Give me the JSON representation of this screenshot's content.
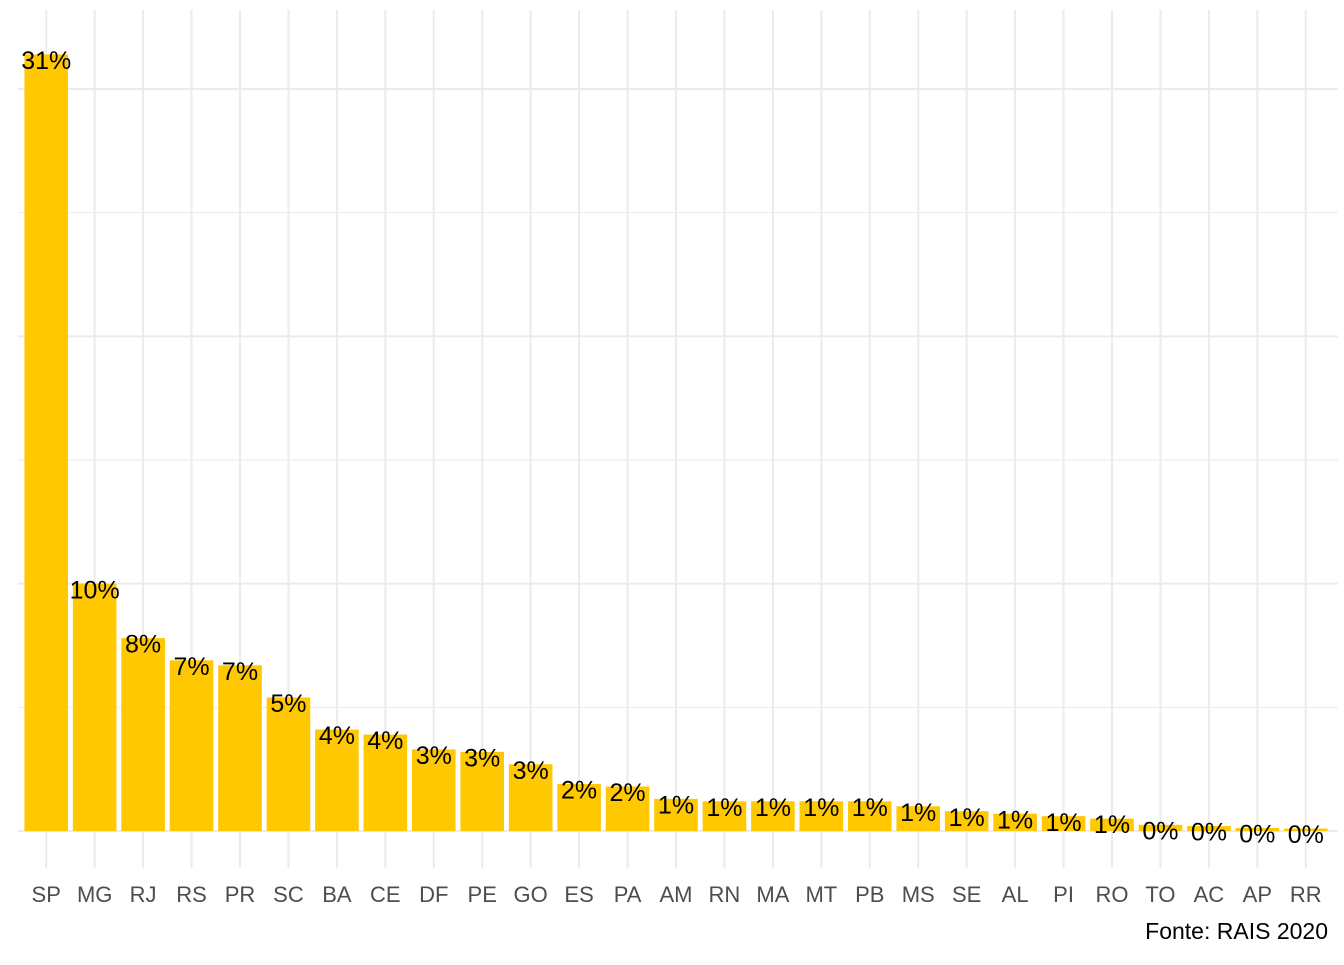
{
  "chart_data": {
    "type": "bar",
    "categories": [
      "SP",
      "MG",
      "RJ",
      "RS",
      "PR",
      "SC",
      "BA",
      "CE",
      "DF",
      "PE",
      "GO",
      "ES",
      "PA",
      "AM",
      "RN",
      "MA",
      "MT",
      "PB",
      "MS",
      "SE",
      "AL",
      "PI",
      "RO",
      "TO",
      "AC",
      "AP",
      "RR"
    ],
    "values": [
      31.4,
      10.0,
      7.8,
      6.9,
      6.7,
      5.4,
      4.1,
      3.9,
      3.3,
      3.2,
      2.7,
      1.9,
      1.8,
      1.3,
      1.2,
      1.2,
      1.2,
      1.2,
      1.0,
      0.8,
      0.7,
      0.6,
      0.5,
      0.25,
      0.2,
      0.12,
      0.1
    ],
    "labels": [
      "31%",
      "10%",
      "8%",
      "7%",
      "7%",
      "5%",
      "4%",
      "4%",
      "3%",
      "3%",
      "3%",
      "2%",
      "2%",
      "1%",
      "1%",
      "1%",
      "1%",
      "1%",
      "1%",
      "1%",
      "1%",
      "1%",
      "1%",
      "0%",
      "0%",
      "0%",
      "0%"
    ],
    "ylim": [
      0,
      32
    ],
    "y_axis_labels_shown": false,
    "grid": true,
    "colors": {
      "bar": "#FFC800",
      "grid": "#EBEBEB",
      "tick_text": "#4D4D4D",
      "label_text": "#000000"
    }
  },
  "caption": "Fonte: RAIS 2020"
}
